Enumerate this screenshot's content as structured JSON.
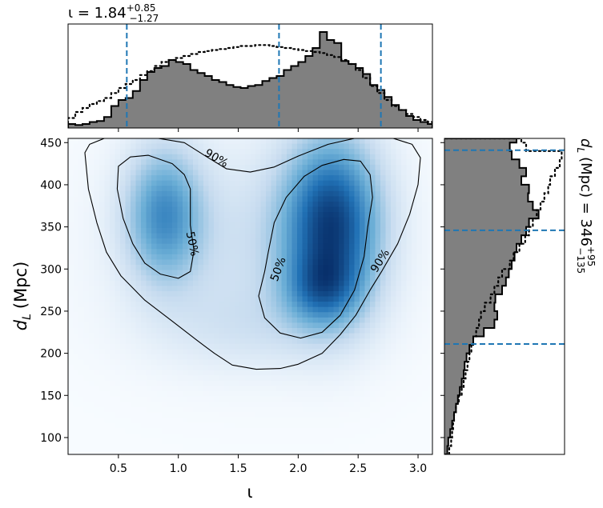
{
  "chart_data": [
    {
      "type": "heatmap",
      "name": "joint-posterior",
      "xlabel": "ι",
      "ylabel_main": "d",
      "ylabel_sub": "L",
      "ylabel_unit": "(Mpc)",
      "xlim": [
        0.08,
        3.12
      ],
      "ylim": [
        80,
        455
      ],
      "x_ticks": [
        0.5,
        1.0,
        1.5,
        2.0,
        2.5,
        3.0
      ],
      "x_tick_labels": [
        "0.5",
        "1.0",
        "1.5",
        "2.0",
        "2.5",
        "3.0"
      ],
      "y_ticks": [
        100,
        150,
        200,
        250,
        300,
        350,
        400,
        450
      ],
      "y_tick_labels": [
        "100",
        "150",
        "200",
        "250",
        "300",
        "350",
        "400",
        "450"
      ],
      "colormap": [
        "#f7fbff",
        "#c6dbef",
        "#6baed6",
        "#2171b5",
        "#08306b"
      ],
      "density_blobs": [
        {
          "x": 2.28,
          "y": 355,
          "sx": 0.28,
          "sy": 70,
          "w": 1.0
        },
        {
          "x": 2.2,
          "y": 275,
          "sx": 0.22,
          "sy": 30,
          "w": 0.45
        },
        {
          "x": 0.88,
          "y": 365,
          "sx": 0.22,
          "sy": 55,
          "w": 0.62
        },
        {
          "x": 1.55,
          "y": 330,
          "sx": 0.7,
          "sy": 80,
          "w": 0.18
        },
        {
          "x": 1.6,
          "y": 230,
          "sx": 0.55,
          "sy": 35,
          "w": 0.12
        }
      ],
      "contour_levels": [
        {
          "label": "90%",
          "color": "#000000",
          "points": [
            [
              0.22,
              438
            ],
            [
              0.26,
              448
            ],
            [
              0.4,
              456
            ],
            [
              0.75,
              457
            ],
            [
              1.05,
              450
            ],
            [
              1.25,
              432
            ],
            [
              1.4,
              419
            ],
            [
              1.6,
              415
            ],
            [
              1.8,
              421
            ],
            [
              2.0,
              434
            ],
            [
              2.25,
              448
            ],
            [
              2.5,
              456
            ],
            [
              2.75,
              457
            ],
            [
              2.95,
              448
            ],
            [
              3.02,
              432
            ],
            [
              3.0,
              400
            ],
            [
              2.93,
              365
            ],
            [
              2.83,
              330
            ],
            [
              2.7,
              298
            ],
            [
              2.6,
              275
            ],
            [
              2.48,
              245
            ],
            [
              2.35,
              222
            ],
            [
              2.2,
              200
            ],
            [
              2.0,
              187
            ],
            [
              1.85,
              182
            ],
            [
              1.65,
              181
            ],
            [
              1.45,
              186
            ],
            [
              1.3,
              200
            ],
            [
              1.15,
              216
            ],
            [
              0.95,
              238
            ],
            [
              0.72,
              263
            ],
            [
              0.52,
              292
            ],
            [
              0.4,
              320
            ],
            [
              0.32,
              355
            ],
            [
              0.25,
              395
            ],
            [
              0.22,
              438
            ]
          ],
          "label_positions": [
            {
              "x": 1.32,
              "y": 432,
              "angle": 30
            },
            {
              "x": 2.68,
              "y": 310,
              "angle": -58
            }
          ]
        },
        {
          "label": "50%",
          "color": "#000000",
          "points": [
            [
              0.5,
              422
            ],
            [
              0.6,
              433
            ],
            [
              0.75,
              435
            ],
            [
              0.95,
              425
            ],
            [
              1.05,
              412
            ],
            [
              1.1,
              395
            ],
            [
              1.1,
              375
            ],
            [
              1.1,
              352
            ],
            [
              1.13,
              322
            ],
            [
              1.1,
              297
            ],
            [
              1.0,
              289
            ],
            [
              0.85,
              294
            ],
            [
              0.72,
              307
            ],
            [
              0.62,
              330
            ],
            [
              0.54,
              360
            ],
            [
              0.49,
              395
            ],
            [
              0.5,
              422
            ]
          ],
          "label_positions": [
            {
              "x": 1.12,
              "y": 330,
              "angle": 78
            }
          ]
        },
        {
          "label": "50%",
          "color": "#000000",
          "points": [
            [
              1.75,
              320
            ],
            [
              1.8,
              355
            ],
            [
              1.9,
              385
            ],
            [
              2.05,
              410
            ],
            [
              2.2,
              423
            ],
            [
              2.38,
              430
            ],
            [
              2.52,
              428
            ],
            [
              2.6,
              412
            ],
            [
              2.62,
              385
            ],
            [
              2.58,
              350
            ],
            [
              2.55,
              315
            ],
            [
              2.47,
              275
            ],
            [
              2.35,
              245
            ],
            [
              2.2,
              225
            ],
            [
              2.02,
              218
            ],
            [
              1.85,
              224
            ],
            [
              1.72,
              242
            ],
            [
              1.67,
              268
            ],
            [
              1.72,
              297
            ],
            [
              1.75,
              320
            ]
          ],
          "label_positions": [
            {
              "x": 1.83,
              "y": 300,
              "angle": -70
            }
          ]
        }
      ]
    },
    {
      "type": "bar",
      "name": "iota-marginal",
      "title_main": "ι = 1.84",
      "title_sup": "+0.85",
      "title_sub": "−1.27",
      "bin_edges": [
        0.08,
        0.14,
        0.2,
        0.26,
        0.32,
        0.38,
        0.44,
        0.5,
        0.56,
        0.62,
        0.68,
        0.74,
        0.8,
        0.86,
        0.92,
        0.98,
        1.04,
        1.1,
        1.16,
        1.22,
        1.28,
        1.34,
        1.4,
        1.46,
        1.52,
        1.58,
        1.64,
        1.7,
        1.76,
        1.82,
        1.88,
        1.94,
        2.0,
        2.06,
        2.12,
        2.18,
        2.24,
        2.3,
        2.36,
        2.42,
        2.48,
        2.54,
        2.6,
        2.66,
        2.72,
        2.78,
        2.84,
        2.9,
        2.96,
        3.02,
        3.08,
        3.12
      ],
      "hist_solid": [
        4,
        3,
        4,
        6,
        7,
        11,
        22,
        28,
        30,
        37,
        48,
        56,
        60,
        62,
        68,
        66,
        64,
        58,
        55,
        52,
        48,
        46,
        43,
        41,
        40,
        42,
        43,
        47,
        50,
        52,
        58,
        62,
        66,
        72,
        80,
        96,
        88,
        85,
        67,
        64,
        60,
        54,
        43,
        38,
        31,
        23,
        18,
        12,
        8,
        6,
        4
      ],
      "hist_dotted": [
        10,
        16,
        20,
        24,
        27,
        30,
        35,
        40,
        44,
        48,
        53,
        57,
        62,
        66,
        68,
        70,
        72,
        74,
        76,
        77,
        78,
        79,
        80,
        81,
        82,
        82,
        83,
        83,
        82,
        81,
        80,
        79,
        78,
        77,
        76,
        75,
        73,
        71,
        68,
        64,
        58,
        50,
        42,
        35,
        28,
        22,
        18,
        14,
        11,
        8,
        6
      ],
      "ylim": [
        0,
        104
      ],
      "x_ticks": [
        0.5,
        1.0,
        1.5,
        2.0,
        2.5,
        3.0
      ],
      "quantile_lines": [
        0.57,
        1.84,
        2.69
      ],
      "fill_color": "#808080",
      "quantile_color": "#1f77b4"
    },
    {
      "type": "bar",
      "name": "distance-marginal",
      "title_main": "d",
      "title_main_sub": "L",
      "title_unit": "(Mpc) = 346",
      "title_sup": "+95",
      "title_sub": "−135",
      "bin_edges": [
        80,
        90,
        100,
        110,
        120,
        130,
        140,
        150,
        160,
        170,
        180,
        190,
        200,
        210,
        220,
        230,
        240,
        250,
        260,
        270,
        280,
        290,
        300,
        310,
        320,
        330,
        340,
        350,
        360,
        370,
        380,
        390,
        400,
        410,
        420,
        430,
        440,
        450,
        455
      ],
      "hist_solid": [
        3,
        4,
        6,
        8,
        10,
        12,
        14,
        16,
        18,
        20,
        21,
        23,
        26,
        30,
        41,
        52,
        55,
        52,
        53,
        60,
        64,
        67,
        70,
        73,
        75,
        80,
        85,
        88,
        98,
        92,
        87,
        88,
        80,
        85,
        78,
        70,
        68,
        75
      ],
      "hist_dotted": [
        5,
        7,
        8,
        9,
        10,
        12,
        15,
        18,
        20,
        22,
        24,
        26,
        28,
        30,
        33,
        36,
        38,
        42,
        48,
        52,
        56,
        60,
        68,
        72,
        78,
        84,
        88,
        92,
        96,
        100,
        104,
        108,
        110,
        115,
        120,
        122,
        85,
        80
      ],
      "xlim": [
        0,
        125
      ],
      "y_ticks": [
        100,
        150,
        200,
        250,
        300,
        350,
        400,
        450
      ],
      "quantile_lines": [
        211,
        346,
        441
      ],
      "fill_color": "#808080",
      "quantile_color": "#1f77b4"
    }
  ]
}
